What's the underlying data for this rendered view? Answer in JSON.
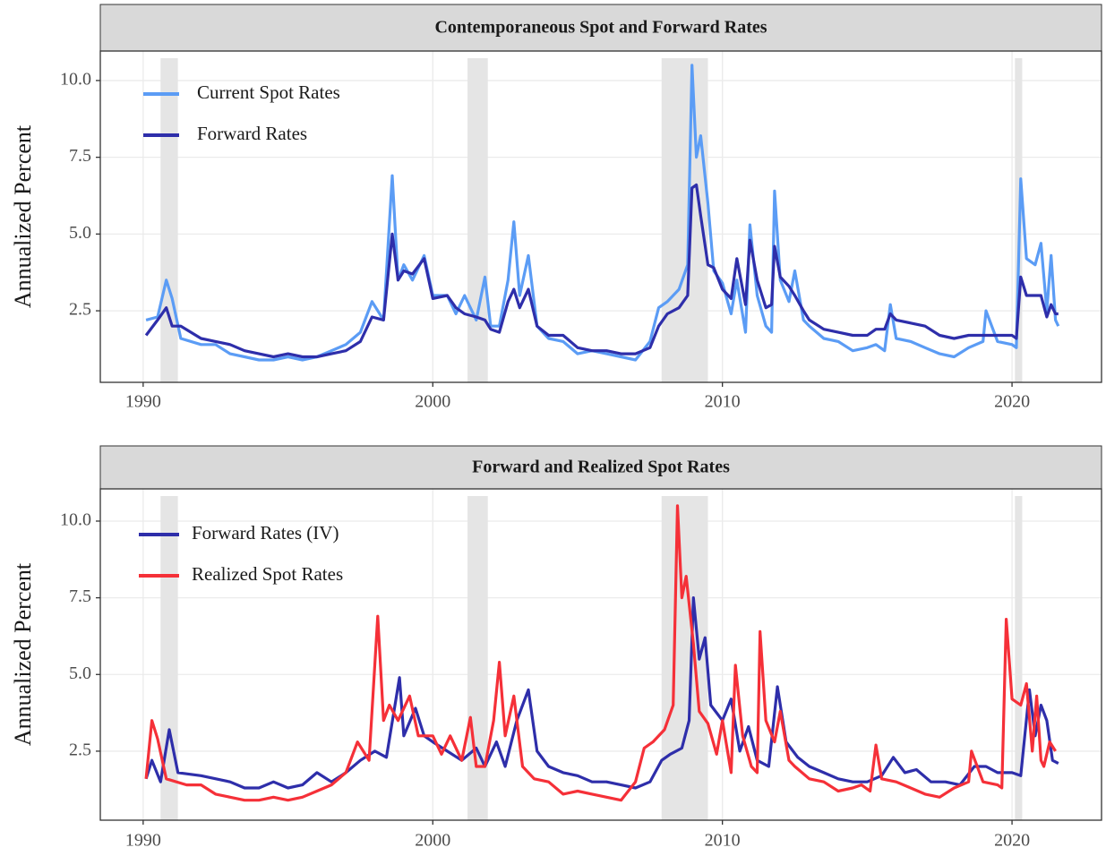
{
  "chart_data": [
    {
      "type": "line",
      "title": "Contemporaneous Spot and Forward Rates",
      "y_label": "Annualized Percent",
      "xlim": [
        1988.52,
        2023.09
      ],
      "xticks": [
        1990,
        2000,
        2010,
        2020
      ],
      "ylim": [
        0.17,
        10.96
      ],
      "yticks": [
        2.5,
        {
          "value": 5,
          "label": "5.0"
        },
        7.5,
        {
          "value": 10,
          "label": "10.0"
        }
      ],
      "grid": true,
      "legend": "top-left",
      "shaded_regions": [
        [
          1990.6,
          1991.2
        ],
        [
          2001.2,
          2001.9
        ],
        [
          2007.9,
          2009.5
        ],
        [
          2020.1,
          2020.35
        ]
      ],
      "series": [
        {
          "name": "Current Spot Rates",
          "color": "#5b9cf5",
          "x": [
            1990.1,
            1990.5,
            1990.8,
            1991.0,
            1991.3,
            1992,
            1992.5,
            1993,
            1993.5,
            1994,
            1994.5,
            1995,
            1995.5,
            1996,
            1996.5,
            1997,
            1997.5,
            1997.9,
            1998.3,
            1998.6,
            1998.8,
            1999,
            1999.3,
            1999.7,
            2000,
            2000.5,
            2000.8,
            2001.1,
            2001.5,
            2001.8,
            2002,
            2002.3,
            2002.6,
            2002.8,
            2003,
            2003.3,
            2003.6,
            2004,
            2004.5,
            2005,
            2005.5,
            2006,
            2006.5,
            2007,
            2007.5,
            2007.8,
            2008.1,
            2008.5,
            2008.8,
            2008.95,
            2009.1,
            2009.25,
            2009.5,
            2009.7,
            2010,
            2010.3,
            2010.5,
            2010.8,
            2010.95,
            2011.2,
            2011.5,
            2011.7,
            2011.8,
            2012,
            2012.3,
            2012.5,
            2012.8,
            2013,
            2013.5,
            2014,
            2014.5,
            2015,
            2015.3,
            2015.6,
            2015.8,
            2016,
            2016.5,
            2017,
            2017.5,
            2018,
            2018.5,
            2019,
            2019.1,
            2019.5,
            2020,
            2020.15,
            2020.3,
            2020.5,
            2020.8,
            2021.0,
            2021.2,
            2021.35,
            2021.5,
            2021.6
          ],
          "values": [
            2.2,
            2.3,
            3.5,
            2.9,
            1.6,
            1.4,
            1.4,
            1.1,
            1.0,
            0.9,
            0.9,
            1.0,
            0.9,
            1.0,
            1.2,
            1.4,
            1.8,
            2.8,
            2.2,
            6.9,
            3.5,
            4.0,
            3.5,
            4.3,
            3.0,
            3.0,
            2.4,
            3.0,
            2.2,
            3.6,
            2.0,
            2.0,
            3.5,
            5.4,
            3.0,
            4.3,
            2.0,
            1.6,
            1.5,
            1.1,
            1.2,
            1.1,
            1.0,
            0.9,
            1.5,
            2.6,
            2.8,
            3.2,
            4.0,
            10.5,
            7.5,
            8.2,
            6.0,
            3.8,
            3.4,
            2.4,
            3.5,
            1.8,
            5.3,
            3.0,
            2.0,
            1.8,
            6.4,
            3.5,
            2.8,
            3.8,
            2.2,
            2.0,
            1.6,
            1.5,
            1.2,
            1.3,
            1.4,
            1.2,
            2.7,
            1.6,
            1.5,
            1.3,
            1.1,
            1.0,
            1.3,
            1.5,
            2.5,
            1.5,
            1.4,
            1.3,
            6.8,
            4.2,
            4.0,
            4.7,
            2.5,
            4.3,
            2.2,
            2.0
          ]
        },
        {
          "name": "Forward Rates",
          "color": "#2e2eaa",
          "x": [
            1990.1,
            1990.5,
            1990.8,
            1991.0,
            1991.3,
            1992,
            1992.5,
            1993,
            1993.5,
            1994,
            1994.5,
            1995,
            1995.5,
            1996,
            1996.5,
            1997,
            1997.5,
            1997.9,
            1998.3,
            1998.6,
            1998.8,
            1999,
            1999.3,
            1999.7,
            2000,
            2000.5,
            2000.8,
            2001.1,
            2001.5,
            2001.8,
            2002,
            2002.3,
            2002.6,
            2002.8,
            2003,
            2003.3,
            2003.6,
            2004,
            2004.5,
            2005,
            2005.5,
            2006,
            2006.5,
            2007,
            2007.5,
            2007.8,
            2008.1,
            2008.5,
            2008.8,
            2008.95,
            2009.1,
            2009.25,
            2009.5,
            2009.7,
            2010,
            2010.3,
            2010.5,
            2010.8,
            2010.95,
            2011.2,
            2011.5,
            2011.7,
            2011.8,
            2012,
            2012.3,
            2012.5,
            2012.8,
            2013,
            2013.5,
            2014,
            2014.5,
            2015,
            2015.3,
            2015.6,
            2015.8,
            2016,
            2016.5,
            2017,
            2017.5,
            2018,
            2018.5,
            2019,
            2019.1,
            2019.5,
            2020,
            2020.15,
            2020.3,
            2020.5,
            2020.8,
            2021.0,
            2021.2,
            2021.35,
            2021.5,
            2021.6
          ],
          "values": [
            1.7,
            2.2,
            2.6,
            2.0,
            2.0,
            1.6,
            1.5,
            1.4,
            1.2,
            1.1,
            1.0,
            1.1,
            1.0,
            1.0,
            1.1,
            1.2,
            1.5,
            2.3,
            2.2,
            5.0,
            3.5,
            3.8,
            3.7,
            4.2,
            2.9,
            3.0,
            2.6,
            2.4,
            2.3,
            2.2,
            1.9,
            1.8,
            2.8,
            3.2,
            2.6,
            3.2,
            2.0,
            1.7,
            1.7,
            1.3,
            1.2,
            1.2,
            1.1,
            1.1,
            1.3,
            2.0,
            2.4,
            2.6,
            3.0,
            6.5,
            6.6,
            5.6,
            4.0,
            3.9,
            3.2,
            2.9,
            4.2,
            2.7,
            4.8,
            3.5,
            2.6,
            2.7,
            4.6,
            3.6,
            3.3,
            3.0,
            2.5,
            2.2,
            1.9,
            1.8,
            1.7,
            1.7,
            1.9,
            1.9,
            2.4,
            2.2,
            2.1,
            2.0,
            1.7,
            1.6,
            1.7,
            1.7,
            1.7,
            1.7,
            1.7,
            1.6,
            3.6,
            3.0,
            3.0,
            3.0,
            2.3,
            2.7,
            2.4,
            2.4
          ]
        }
      ]
    },
    {
      "type": "line",
      "title": "Forward and Realized Spot Rates",
      "y_label": "Annualized Percent",
      "xlim": [
        1988.52,
        2023.09
      ],
      "xticks": [
        1990,
        2000,
        2010,
        2020
      ],
      "ylim": [
        0.25,
        11.05
      ],
      "yticks": [
        2.5,
        {
          "value": 5,
          "label": "5.0"
        },
        7.5,
        {
          "value": 10,
          "label": "10.0"
        }
      ],
      "grid": true,
      "legend": "top-left",
      "shaded_regions": [
        [
          1990.6,
          1991.2
        ],
        [
          2001.2,
          2001.9
        ],
        [
          2007.9,
          2009.5
        ],
        [
          2020.1,
          2020.35
        ]
      ],
      "series": [
        {
          "name": "Forward Rates (IV)",
          "color": "#2e2eaa",
          "x": [
            1990.1,
            1990.3,
            1990.6,
            1990.9,
            1991.2,
            1992,
            1993,
            1993.5,
            1994,
            1994.5,
            1995,
            1995.5,
            1996,
            1996.5,
            1997,
            1997.5,
            1998,
            1998.4,
            1998.85,
            1999,
            1999.4,
            1999.7,
            2000,
            2000.5,
            2001,
            2001.5,
            2001.8,
            2002.2,
            2002.5,
            2002.9,
            2003.3,
            2003.6,
            2004,
            2004.5,
            2005,
            2005.5,
            2006,
            2006.5,
            2007,
            2007.5,
            2007.9,
            2008.2,
            2008.6,
            2008.85,
            2009.0,
            2009.2,
            2009.4,
            2009.6,
            2010,
            2010.3,
            2010.6,
            2010.9,
            2011.2,
            2011.6,
            2011.9,
            2012.2,
            2012.6,
            2013,
            2013.5,
            2014,
            2014.5,
            2015,
            2015.5,
            2015.9,
            2016.3,
            2016.7,
            2017.2,
            2017.7,
            2018.2,
            2018.7,
            2019.1,
            2019.5,
            2020,
            2020.3,
            2020.6,
            2020.8,
            2021.0,
            2021.2,
            2021.4,
            2021.6
          ],
          "values": [
            1.6,
            2.2,
            1.5,
            3.2,
            1.8,
            1.7,
            1.5,
            1.3,
            1.3,
            1.5,
            1.3,
            1.4,
            1.8,
            1.5,
            1.8,
            2.2,
            2.5,
            2.3,
            4.9,
            3.0,
            3.9,
            3.0,
            2.8,
            2.5,
            2.2,
            2.6,
            2.0,
            2.8,
            2.0,
            3.5,
            4.5,
            2.5,
            2.0,
            1.8,
            1.7,
            1.5,
            1.5,
            1.4,
            1.3,
            1.5,
            2.2,
            2.4,
            2.6,
            3.5,
            7.5,
            5.5,
            6.2,
            4.0,
            3.5,
            4.2,
            2.5,
            3.3,
            2.2,
            2.0,
            4.6,
            2.8,
            2.3,
            2.0,
            1.8,
            1.6,
            1.5,
            1.5,
            1.7,
            2.3,
            1.8,
            1.9,
            1.5,
            1.5,
            1.4,
            2.0,
            2.0,
            1.8,
            1.8,
            1.7,
            4.5,
            3.0,
            4.0,
            3.5,
            2.2,
            2.1
          ]
        },
        {
          "name": "Realized Spot Rates",
          "color": "#f53038",
          "x": [
            1990.1,
            1990.3,
            1990.5,
            1990.8,
            1991.5,
            1992,
            1992.5,
            1993,
            1993.5,
            1994,
            1994.5,
            1995,
            1995.5,
            1996,
            1996.5,
            1997,
            1997.4,
            1997.8,
            1998.1,
            1998.3,
            1998.5,
            1998.8,
            1999.2,
            1999.5,
            2000,
            2000.3,
            2000.6,
            2001,
            2001.3,
            2001.5,
            2001.8,
            2002.1,
            2002.3,
            2002.5,
            2002.8,
            2003.1,
            2003.5,
            2004,
            2004.5,
            2005,
            2005.5,
            2006,
            2006.5,
            2007,
            2007.3,
            2007.6,
            2008,
            2008.3,
            2008.45,
            2008.6,
            2008.75,
            2009,
            2009.2,
            2009.5,
            2009.8,
            2010,
            2010.3,
            2010.45,
            2010.7,
            2011,
            2011.2,
            2011.3,
            2011.5,
            2011.8,
            2012,
            2012.3,
            2012.5,
            2013,
            2013.5,
            2014,
            2014.5,
            2014.8,
            2015.1,
            2015.3,
            2015.5,
            2016,
            2016.5,
            2017,
            2017.5,
            2018,
            2018.5,
            2018.6,
            2019,
            2019.5,
            2019.65,
            2019.8,
            2020,
            2020.3,
            2020.5,
            2020.7,
            2020.85,
            2021,
            2021.1,
            2021.3,
            2021.5
          ],
          "values": [
            1.6,
            3.5,
            2.9,
            1.6,
            1.4,
            1.4,
            1.1,
            1.0,
            0.9,
            0.9,
            1.0,
            0.9,
            1.0,
            1.2,
            1.4,
            1.8,
            2.8,
            2.2,
            6.9,
            3.5,
            4.0,
            3.5,
            4.3,
            3.0,
            3.0,
            2.4,
            3.0,
            2.2,
            3.6,
            2.0,
            2.0,
            3.5,
            5.4,
            3.0,
            4.3,
            2.0,
            1.6,
            1.5,
            1.1,
            1.2,
            1.1,
            1.0,
            0.9,
            1.5,
            2.6,
            2.8,
            3.2,
            4.0,
            10.5,
            7.5,
            8.2,
            6.0,
            3.8,
            3.4,
            2.4,
            3.5,
            1.8,
            5.3,
            3.0,
            2.0,
            1.8,
            6.4,
            3.5,
            2.8,
            3.8,
            2.2,
            2.0,
            1.6,
            1.5,
            1.2,
            1.3,
            1.4,
            1.2,
            2.7,
            1.6,
            1.5,
            1.3,
            1.1,
            1.0,
            1.3,
            1.5,
            2.5,
            1.5,
            1.4,
            1.3,
            6.8,
            4.2,
            4.0,
            4.7,
            2.5,
            4.3,
            2.2,
            2.0,
            2.8,
            2.5
          ]
        }
      ]
    }
  ]
}
